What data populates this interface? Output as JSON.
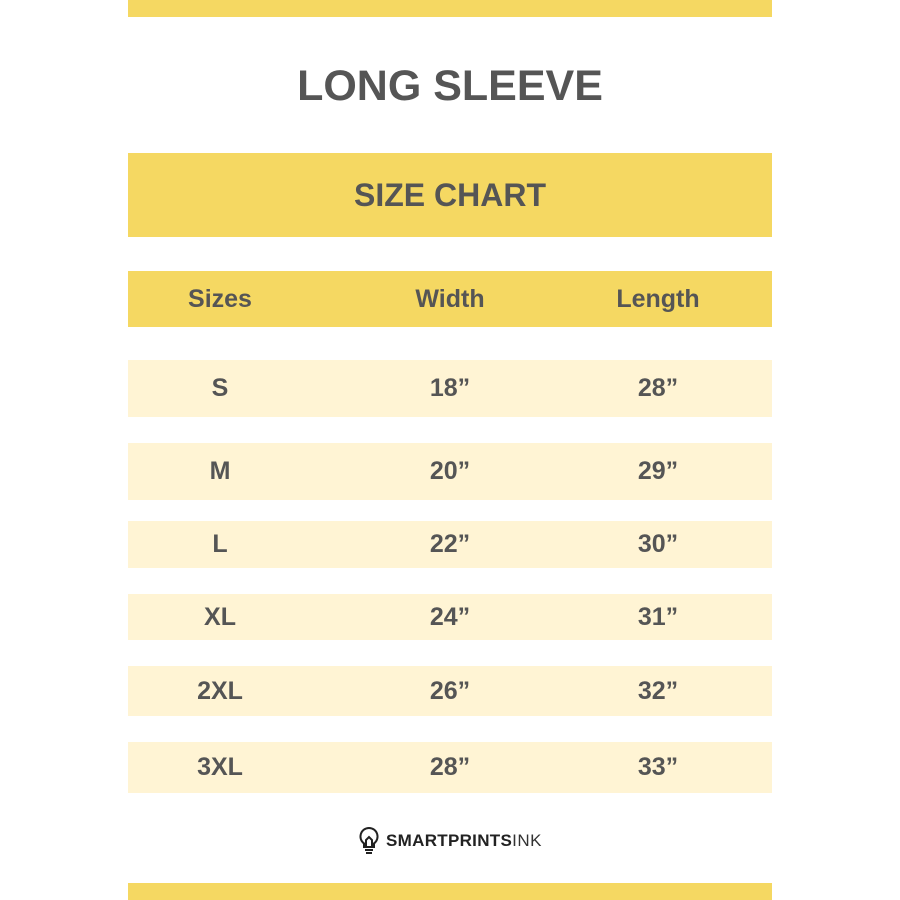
{
  "colors": {
    "accent": "#f5d862",
    "row_fill": "#fff4d4",
    "text": "#555555"
  },
  "title": "LONG SLEEVE",
  "band": "SIZE CHART",
  "table": {
    "headers": [
      "Sizes",
      "Width",
      "Length"
    ],
    "rows": [
      [
        "S",
        "18”",
        "28”"
      ],
      [
        "M",
        "20”",
        "29”"
      ],
      [
        "L",
        "22”",
        "30”"
      ],
      [
        "XL",
        "24”",
        "31”"
      ],
      [
        "2XL",
        "26”",
        "32”"
      ],
      [
        "3XL",
        "28”",
        "33”"
      ]
    ]
  },
  "logo": {
    "icon": "lightbulb-icon",
    "bold": "SMARTPRINTS",
    "light": "INK"
  }
}
